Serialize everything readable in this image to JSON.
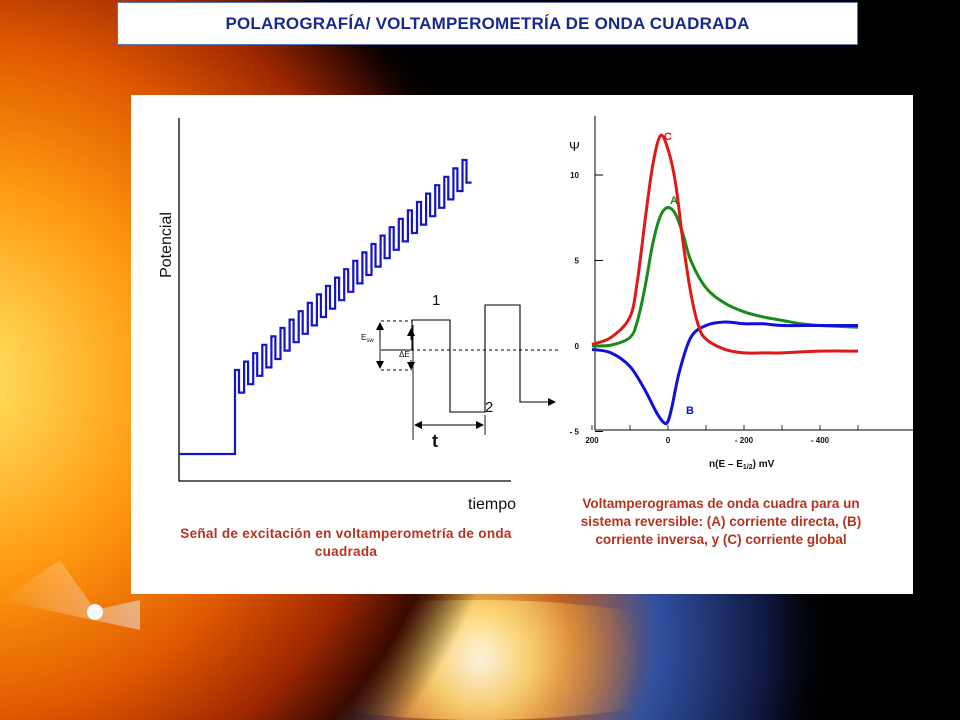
{
  "title": "POLAROGRAFÍA/  VOLTAMPEROMETRÍA  DE ONDA CUADRADA",
  "left_figure": {
    "ylabel": "Potencial",
    "xlabel": "tiempo",
    "label_1": "1",
    "label_2": "2",
    "label_t": "t",
    "label_esw": "E",
    "label_esw_sub": "sw",
    "label_delta_e": "ΔE",
    "caption": "Señal de excitación en voltamperometría de onda cuadrada"
  },
  "right_figure": {
    "ylabel": "Ψ",
    "xlabel": "n(E – E",
    "xlabel_sub": "1/2",
    "xlabel_end": ") mV",
    "caption": "Voltamperogramas de onda cuadra para un sistema reversible: (A) corriente directa, (B) corriente inversa, y (C) corriente global",
    "chart_data": {
      "type": "line",
      "xlabel": "n(E – E1/2) mV",
      "ylabel": "Ψ",
      "xlim": [
        200,
        -500
      ],
      "ylim": [
        -5,
        14
      ],
      "x_ticks": [
        "200",
        "0",
        "- 200",
        "- 400"
      ],
      "y_ticks": [
        "10",
        "5",
        "0",
        "- 5"
      ],
      "series": [
        {
          "name": "A",
          "color": "#1a8a1a",
          "x": [
            200,
            150,
            100,
            80,
            60,
            40,
            20,
            0,
            -20,
            -40,
            -60,
            -100,
            -150,
            -200,
            -250,
            -300,
            -350,
            -400,
            -500
          ],
          "y": [
            0.0,
            0.05,
            0.5,
            1.5,
            3.5,
            6.0,
            7.6,
            8.1,
            7.7,
            6.5,
            5.0,
            3.4,
            2.5,
            2.0,
            1.7,
            1.5,
            1.3,
            1.2,
            1.1
          ]
        },
        {
          "name": "B",
          "color": "#1010d8",
          "x": [
            200,
            150,
            100,
            60,
            30,
            10,
            0,
            -10,
            -30,
            -60,
            -100,
            -150,
            -200,
            -250,
            -300,
            -400,
            -500
          ],
          "y": [
            -0.2,
            -0.4,
            -1.2,
            -2.6,
            -3.9,
            -4.5,
            -4.4,
            -3.6,
            -1.5,
            0.5,
            1.2,
            1.4,
            1.3,
            1.3,
            1.2,
            1.2,
            1.2
          ]
        },
        {
          "name": "C",
          "color": "#e01818",
          "x": [
            200,
            150,
            100,
            80,
            60,
            40,
            20,
            0,
            -20,
            -40,
            -60,
            -80,
            -100,
            -150,
            -200,
            -250,
            -300,
            -400,
            -500
          ],
          "y": [
            0.1,
            0.5,
            1.7,
            3.9,
            7.4,
            10.6,
            12.3,
            11.5,
            9.5,
            6.0,
            3.1,
            1.2,
            0.4,
            -0.2,
            -0.4,
            -0.4,
            -0.4,
            -0.3,
            -0.3
          ]
        }
      ]
    }
  }
}
